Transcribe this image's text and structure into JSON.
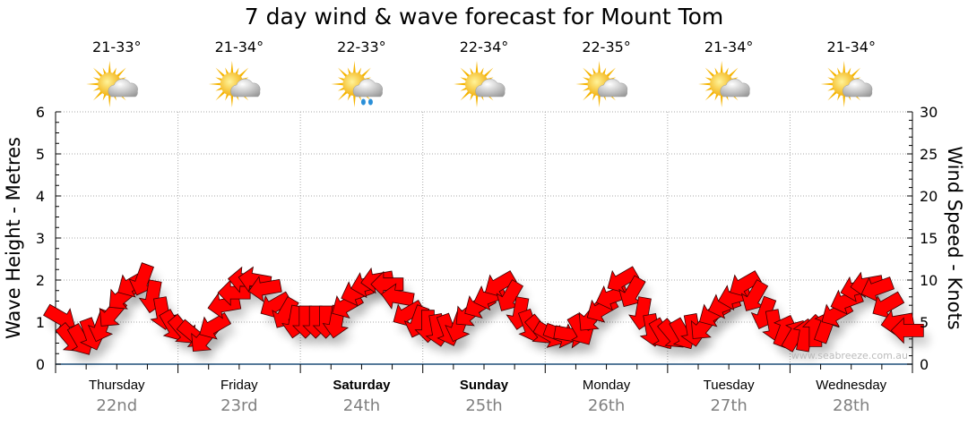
{
  "chart_data": {
    "type": "scatter",
    "title": "7 day wind & wave forecast for Mount Tom",
    "ylabel": "Wave Height - Metres",
    "y2label": "Wind Speed - Knots",
    "ylim": [
      0,
      6
    ],
    "y2lim": [
      0,
      30
    ],
    "yticks": [
      "0",
      "1",
      "2",
      "3",
      "4",
      "5",
      "6"
    ],
    "y2ticks": [
      "0",
      "5",
      "10",
      "15",
      "20",
      "25",
      "30"
    ],
    "grid": true,
    "watermark": "www.seabreeze.com.au",
    "days": [
      {
        "name": "Thursday",
        "date": "22nd",
        "temp": "21-33°",
        "icon": "partly-cloudy",
        "weekend": false
      },
      {
        "name": "Friday",
        "date": "23rd",
        "temp": "21-34°",
        "icon": "partly-cloudy",
        "weekend": false
      },
      {
        "name": "Saturday",
        "date": "24th",
        "temp": "22-33°",
        "icon": "shower",
        "weekend": true
      },
      {
        "name": "Sunday",
        "date": "25th",
        "temp": "22-34°",
        "icon": "partly-cloudy",
        "weekend": true
      },
      {
        "name": "Monday",
        "date": "26th",
        "temp": "22-35°",
        "icon": "partly-cloudy",
        "weekend": false
      },
      {
        "name": "Tuesday",
        "date": "27th",
        "temp": "21-34°",
        "icon": "partly-cloudy",
        "weekend": false
      },
      {
        "name": "Wednesday",
        "date": "28th",
        "temp": "21-34°",
        "icon": "partly-cloudy",
        "weekend": false
      }
    ],
    "wind_interval_hours": 2,
    "wind_speed_knots": [
      5.5,
      3,
      2.8,
      3.5,
      4.5,
      6,
      8,
      9.5,
      10,
      8,
      6,
      4.5,
      4,
      3.5,
      3,
      4.5,
      7,
      8.5,
      10,
      10,
      9,
      7,
      6,
      5,
      5,
      5,
      5,
      5,
      7,
      8.5,
      9.5,
      10,
      9.5,
      8,
      6,
      5,
      4.5,
      4,
      4,
      4.5,
      6,
      7,
      8,
      9.5,
      8,
      6,
      4.5,
      4,
      3.5,
      3.5,
      3.5,
      4,
      5.5,
      6.5,
      8,
      10,
      8.5,
      6,
      4,
      3.5,
      3.5,
      3.5,
      4,
      4.5,
      6,
      7,
      8,
      9.5,
      8,
      6,
      4.5,
      4,
      3.5,
      3.5,
      4,
      4.5,
      6,
      7.5,
      9,
      9.5,
      9,
      7,
      5,
      4
    ],
    "wind_direction_from_deg": [
      300,
      320,
      330,
      340,
      20,
      40,
      50,
      60,
      20,
      10,
      350,
      330,
      320,
      310,
      40,
      60,
      80,
      90,
      95,
      100,
      80,
      60,
      30,
      10,
      0,
      0,
      0,
      10,
      60,
      70,
      75,
      80,
      90,
      100,
      60,
      20,
      0,
      350,
      340,
      20,
      50,
      60,
      70,
      60,
      30,
      10,
      340,
      320,
      300,
      290,
      280,
      330,
      40,
      60,
      70,
      60,
      30,
      10,
      350,
      330,
      320,
      330,
      350,
      40,
      60,
      70,
      75,
      60,
      30,
      20,
      350,
      200,
      210,
      190,
      180,
      200,
      60,
      70,
      75,
      80,
      70,
      60,
      80,
      90
    ]
  }
}
